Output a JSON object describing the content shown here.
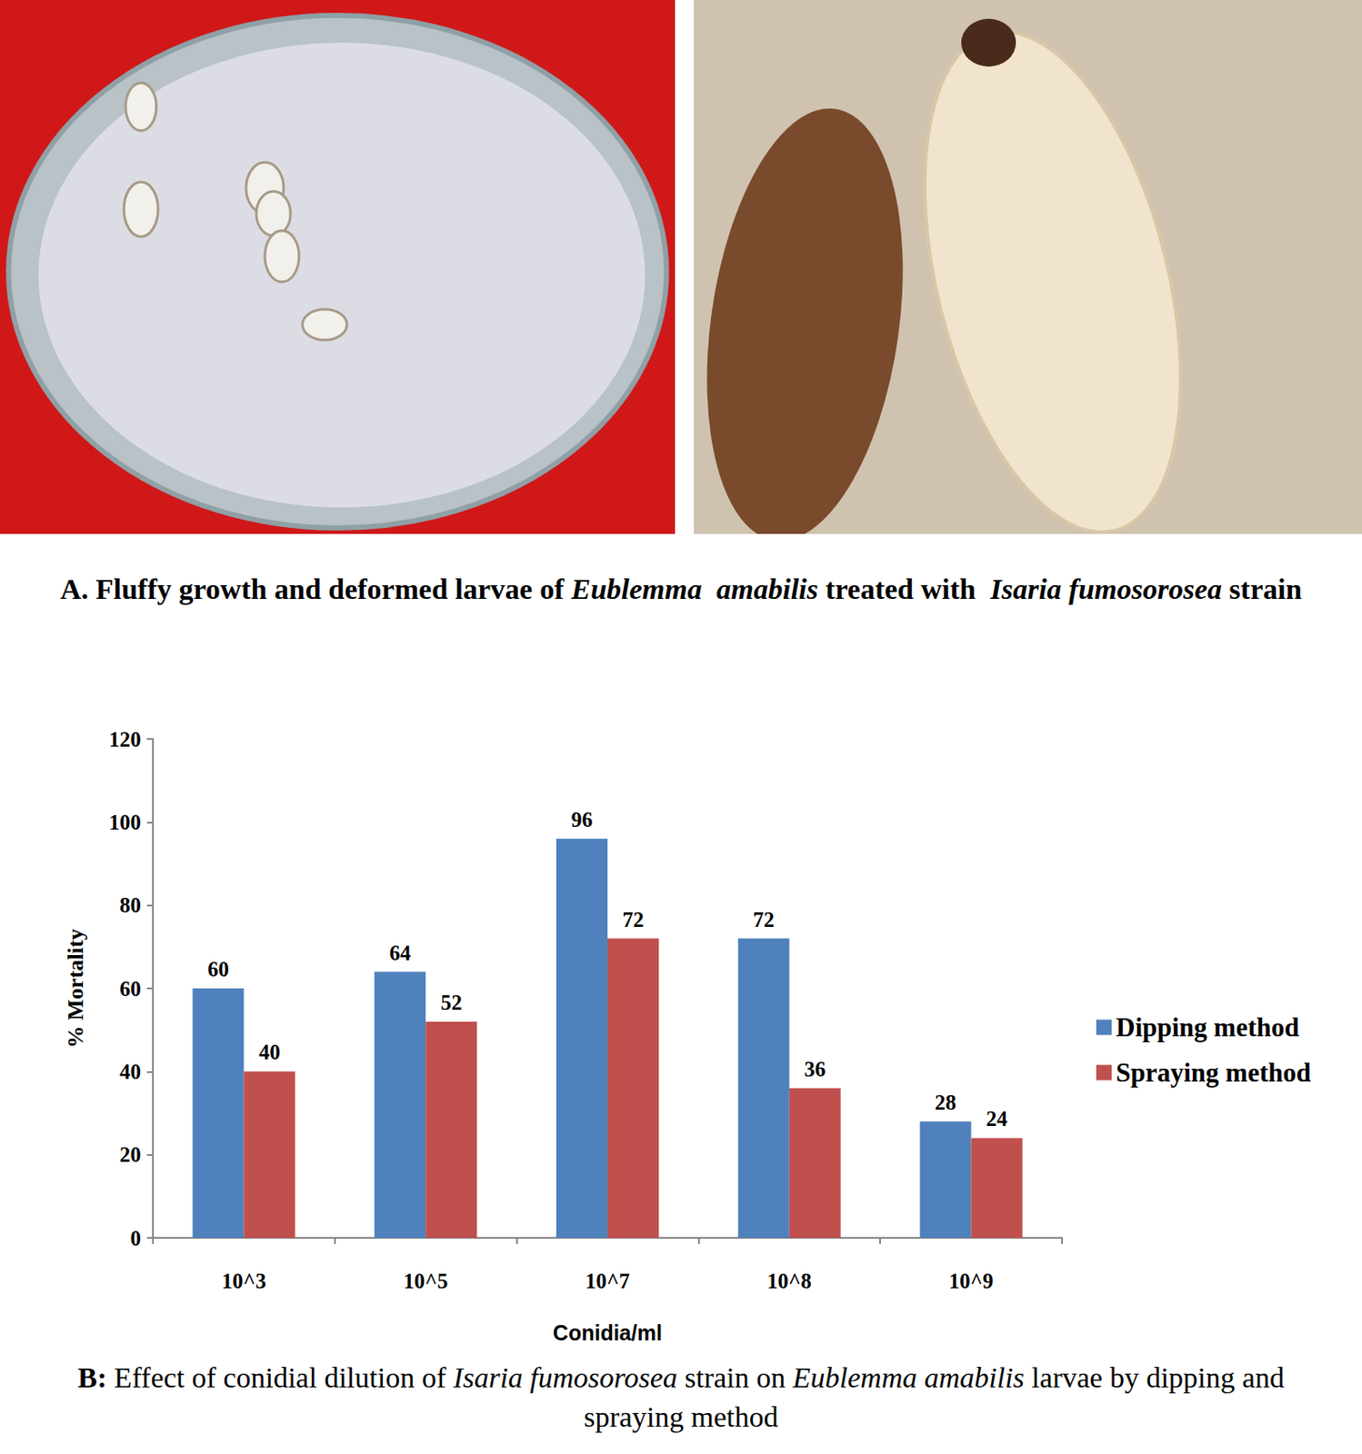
{
  "figure": {
    "panel_a": {
      "caption": [
        {
          "text": "A",
          "bold": true
        },
        {
          "text": ". Fluffy growth and deformed larvae of ",
          "bold": true
        },
        {
          "text": "Eublemma  amabilis",
          "bold": true,
          "italic": true
        },
        {
          "text": " treated with  ",
          "bold": true
        },
        {
          "text": "Isaria fumosorosea",
          "bold": true,
          "italic": true
        },
        {
          "text": " strain",
          "bold": true
        }
      ]
    },
    "panel_b": {
      "caption": [
        {
          "text": "B:",
          "bold": true
        },
        {
          "text": " Effect of conidial dilution of "
        },
        {
          "text": "Isaria fumosorosea",
          "italic": true
        },
        {
          "text": " strain on "
        },
        {
          "text": "Eublemma amabilis",
          "italic": true
        },
        {
          "text": " larvae by dipping and spraying method"
        }
      ]
    }
  },
  "chart_data": {
    "type": "bar",
    "x_label": "Conidia/ml",
    "y_label": "% Mortality",
    "categories": [
      "10^3",
      "10^5",
      "10^7",
      "10^8",
      "10^9"
    ],
    "series": [
      {
        "name": "Dipping method",
        "color": "#4f81bd",
        "values": [
          60,
          64,
          96,
          72,
          28
        ]
      },
      {
        "name": "Spraying method",
        "color": "#c0504d",
        "values": [
          40,
          52,
          72,
          36,
          24
        ]
      }
    ],
    "ylim": [
      0,
      120
    ],
    "yticks": [
      0,
      20,
      40,
      60,
      80,
      100,
      120
    ],
    "grid": false,
    "legend": "right",
    "data_labels": true
  }
}
